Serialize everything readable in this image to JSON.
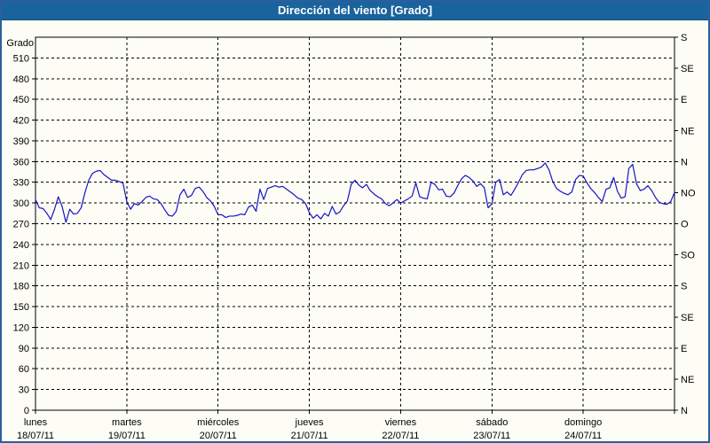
{
  "window": {
    "title": "Dirección del viento [Grado]"
  },
  "colors": {
    "titlebar_bg": "#1a639c",
    "titlebar_text": "#ffffff",
    "window_border": "#2a5f9e",
    "background": "#fdfdf6",
    "plot_border": "#000000",
    "grid": "#000000",
    "series_line": "#1414c8",
    "label_text": "#000000"
  },
  "chart_data": {
    "type": "line",
    "title": "Dirección del viento [Grado]",
    "ylabel": "Grado",
    "ylim": [
      0,
      540
    ],
    "yticks": [
      0,
      30,
      60,
      90,
      120,
      150,
      180,
      210,
      240,
      270,
      300,
      330,
      360,
      390,
      420,
      450,
      480,
      510
    ],
    "right_axis": {
      "values": [
        0,
        45,
        90,
        135,
        180,
        225,
        270,
        315,
        360,
        405,
        450,
        495,
        540
      ],
      "labels": [
        "N",
        "NE",
        "E",
        "SE",
        "S",
        "SO",
        "O",
        "NO",
        "N",
        "NE",
        "E",
        "SE",
        "S"
      ]
    },
    "days": [
      {
        "name": "lunes",
        "date": "18/07/11"
      },
      {
        "name": "martes",
        "date": "19/07/11"
      },
      {
        "name": "miércoles",
        "date": "20/07/11"
      },
      {
        "name": "jueves",
        "date": "21/07/11"
      },
      {
        "name": "viernes",
        "date": "22/07/11"
      },
      {
        "name": "sábado",
        "date": "23/07/11"
      },
      {
        "name": "domingo",
        "date": "24/07/11"
      }
    ],
    "grid": true,
    "legend": false,
    "points_per_day": 24,
    "series": [
      {
        "name": "Dirección del viento",
        "color": "#1414c8",
        "values": [
          305,
          293,
          292,
          285,
          276,
          291,
          309,
          295,
          272,
          291,
          284,
          285,
          293,
          315,
          333,
          343,
          346,
          347,
          341,
          337,
          333,
          333,
          331,
          329,
          302,
          291,
          299,
          297,
          302,
          308,
          310,
          306,
          305,
          299,
          290,
          282,
          281,
          288,
          312,
          320,
          308,
          311,
          321,
          323,
          317,
          308,
          303,
          295,
          283,
          283,
          279,
          281,
          281,
          282,
          284,
          283,
          294,
          297,
          288,
          320,
          305,
          321,
          323,
          325,
          323,
          324,
          320,
          316,
          312,
          307,
          305,
          299,
          286,
          278,
          283,
          277,
          285,
          281,
          295,
          284,
          287,
          296,
          303,
          327,
          333,
          326,
          322,
          327,
          318,
          313,
          309,
          306,
          299,
          296,
          300,
          305,
          300,
          303,
          306,
          310,
          329,
          309,
          307,
          306,
          330,
          327,
          319,
          320,
          310,
          309,
          314,
          325,
          335,
          340,
          337,
          332,
          324,
          328,
          322,
          293,
          299,
          330,
          334,
          312,
          316,
          311,
          320,
          330,
          341,
          347,
          348,
          348,
          350,
          352,
          358,
          348,
          331,
          321,
          317,
          314,
          312,
          316,
          334,
          340,
          339,
          329,
          321,
          315,
          308,
          302,
          320,
          322,
          337,
          317,
          307,
          309,
          350,
          356,
          328,
          318,
          320,
          325,
          318,
          308,
          301,
          299,
          298,
          302,
          315
        ]
      }
    ]
  }
}
